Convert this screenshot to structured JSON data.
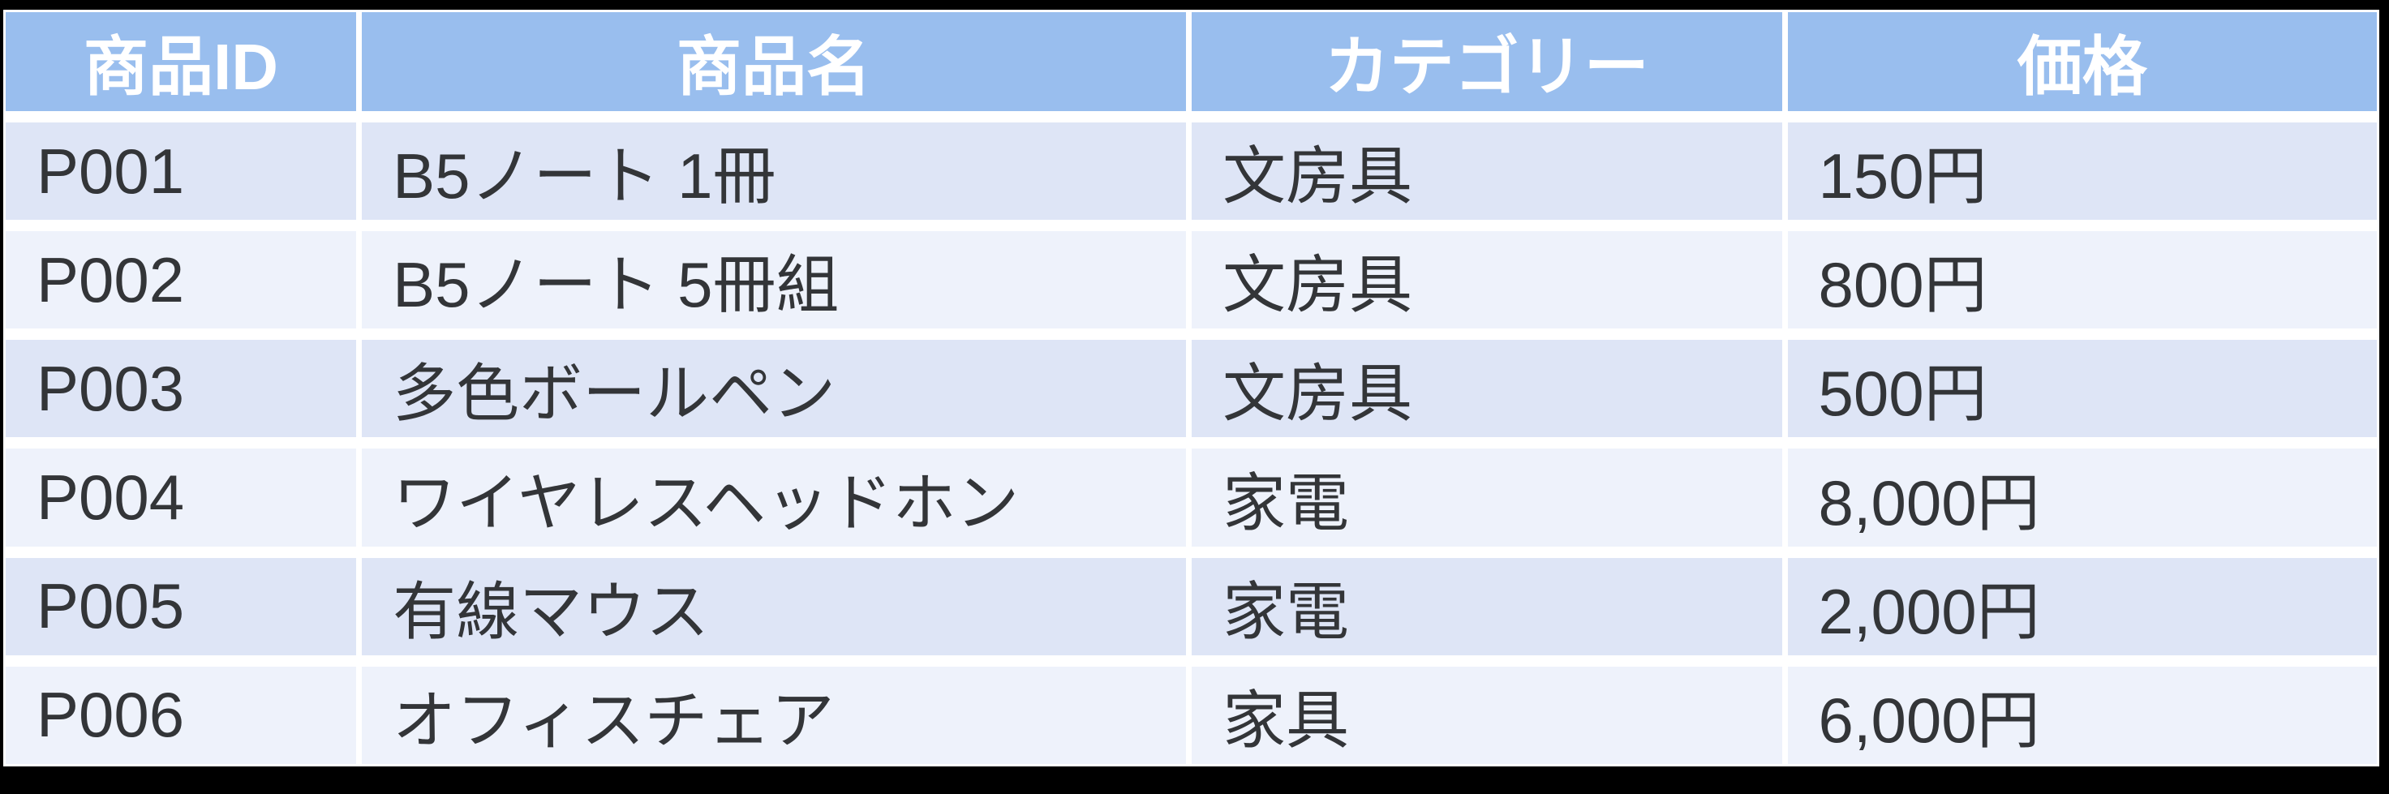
{
  "page": {
    "background_color": "#000000",
    "description": "Product list table"
  },
  "table": {
    "colors": {
      "header_bg": "#99BEEE",
      "header_text": "#FFFFFF",
      "row_odd_bg": "#DEE5F6",
      "row_even_bg": "#EEF2FB",
      "grid_line": "#FFFFFF",
      "body_text": "#333538"
    },
    "columns": [
      {
        "key": "id",
        "label": "商品ID"
      },
      {
        "key": "name",
        "label": "商品名"
      },
      {
        "key": "category",
        "label": "カテゴリー"
      },
      {
        "key": "price",
        "label": "価格"
      }
    ],
    "rows": [
      {
        "id": "P001",
        "name": "B5ノート 1冊",
        "category": "文房具",
        "price": "150円"
      },
      {
        "id": "P002",
        "name": "B5ノート 5冊組",
        "category": "文房具",
        "price": "800円"
      },
      {
        "id": "P003",
        "name": "多色ボールペン",
        "category": "文房具",
        "price": "500円"
      },
      {
        "id": "P004",
        "name": "ワイヤレスヘッドホン",
        "category": "家電",
        "price": "8,000円"
      },
      {
        "id": "P005",
        "name": "有線マウス",
        "category": "家電",
        "price": "2,000円"
      },
      {
        "id": "P006",
        "name": "オフィスチェア",
        "category": "家具",
        "price": "6,000円"
      }
    ]
  },
  "chart_data": {
    "type": "table",
    "title": "",
    "columns": [
      "商品ID",
      "商品名",
      "カテゴリー",
      "価格"
    ],
    "rows": [
      [
        "P001",
        "B5ノート 1冊",
        "文房具",
        "150円"
      ],
      [
        "P002",
        "B5ノート 5冊組",
        "文房具",
        "800円"
      ],
      [
        "P003",
        "多色ボールペン",
        "文房具",
        "500円"
      ],
      [
        "P004",
        "ワイヤレスヘッドホン",
        "家電",
        "8,000円"
      ],
      [
        "P005",
        "有線マウス",
        "家電",
        "2,000円"
      ],
      [
        "P006",
        "オフィスチェア",
        "家具",
        "6,000円"
      ]
    ]
  }
}
